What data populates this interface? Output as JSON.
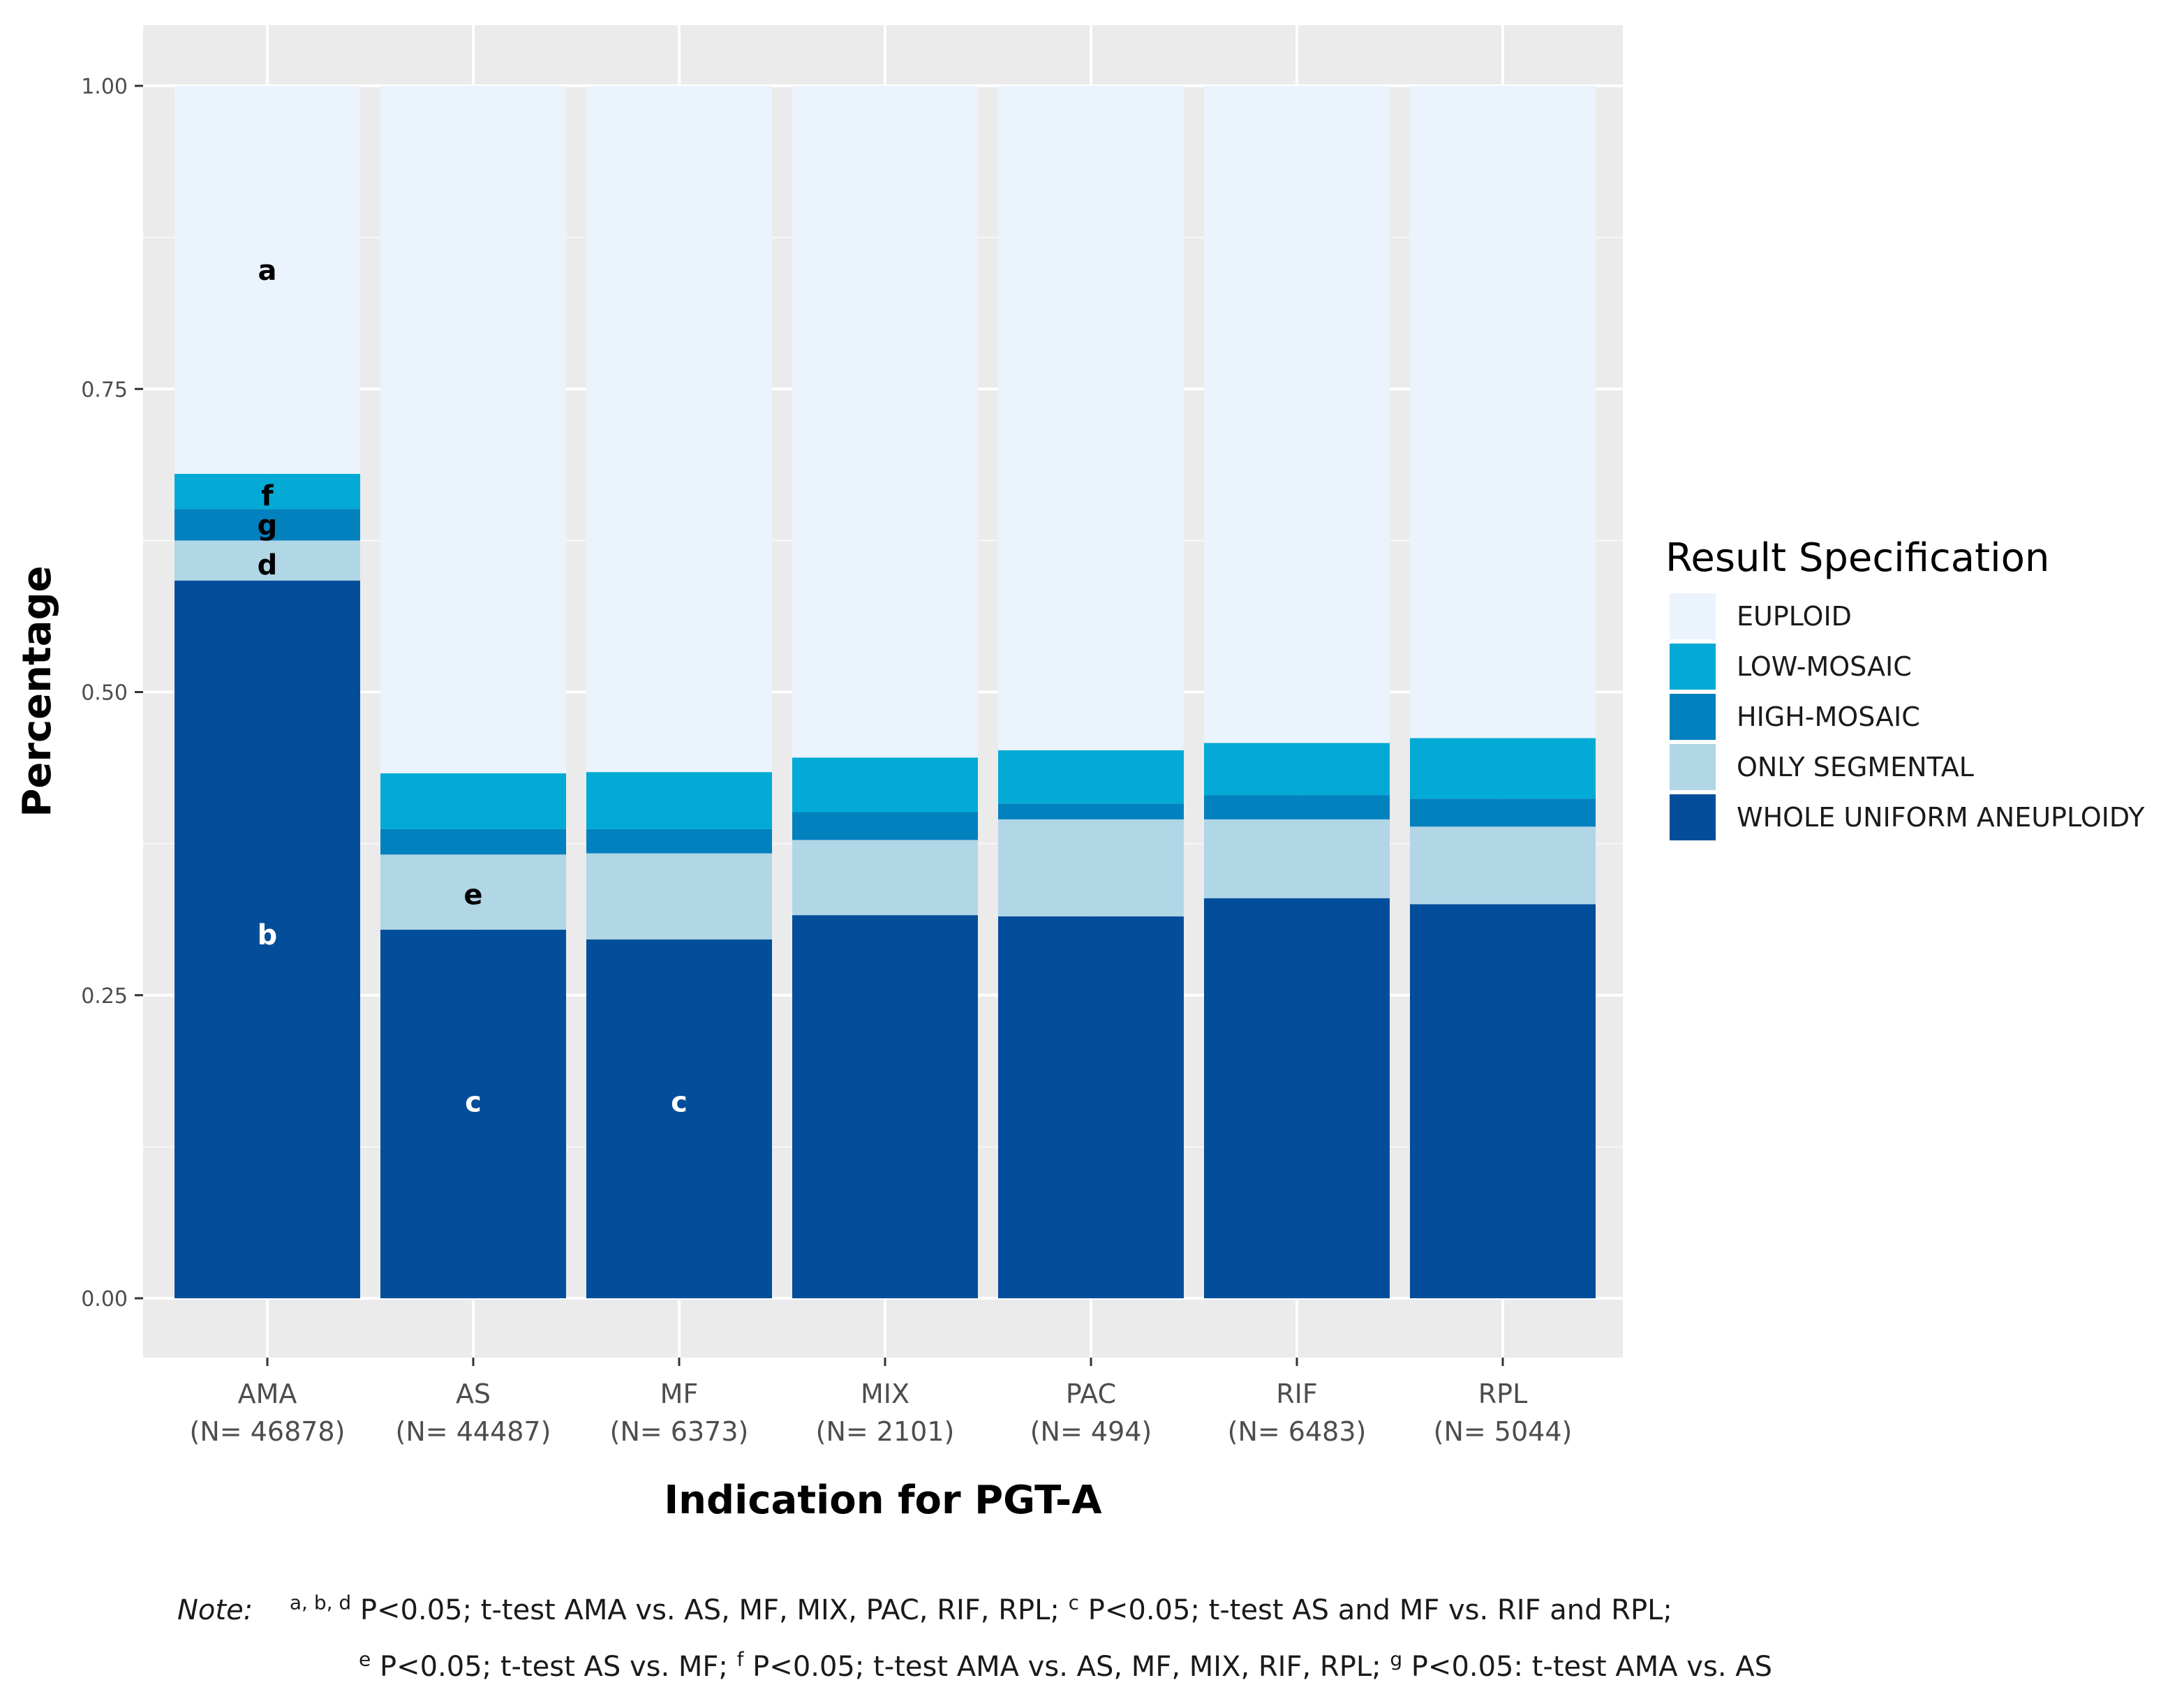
{
  "chart_data": {
    "type": "stacked-bar",
    "title": "",
    "xlabel": "Indication for PGT-A",
    "ylabel": "Percentage",
    "ylim": [
      0,
      1
    ],
    "yticks": [
      "0.00",
      "0.25",
      "0.50",
      "0.75",
      "1.00"
    ],
    "categories": [
      "AMA",
      "AS",
      "MF",
      "MIX",
      "PAC",
      "RIF",
      "RPL"
    ],
    "category_n": [
      "(N= 46878)",
      "(N= 44487)",
      "(N= 6373)",
      "(N= 2101)",
      "(N= 494)",
      "(N= 6483)",
      "(N= 5044)"
    ],
    "legend_title": "Result Specification",
    "legend_position": "right",
    "series": [
      {
        "name": "WHOLE UNIFORM ANEUPLOIDY",
        "color": "#034e9b",
        "values": [
          0.592,
          0.304,
          0.296,
          0.316,
          0.315,
          0.33,
          0.325
        ]
      },
      {
        "name": "ONLY SEGMENTAL",
        "color": "#b1d6e6",
        "values": [
          0.033,
          0.062,
          0.071,
          0.062,
          0.08,
          0.065,
          0.064
        ]
      },
      {
        "name": "HIGH-MOSAIC",
        "color": "#0281bf",
        "values": [
          0.026,
          0.021,
          0.02,
          0.023,
          0.013,
          0.02,
          0.023
        ]
      },
      {
        "name": "LOW-MOSAIC",
        "color": "#02aad5",
        "values": [
          0.029,
          0.046,
          0.047,
          0.045,
          0.044,
          0.043,
          0.05
        ]
      },
      {
        "name": "EUPLOID",
        "color": "#ebf3fd",
        "values": [
          0.32,
          0.567,
          0.566,
          0.554,
          0.548,
          0.542,
          0.538
        ]
      }
    ],
    "legend_order": [
      "EUPLOID",
      "LOW-MOSAIC",
      "HIGH-MOSAIC",
      "ONLY SEGMENTAL",
      "WHOLE UNIFORM ANEUPLOIDY"
    ],
    "annotations": [
      {
        "text": "a",
        "category": "AMA",
        "y": 0.848,
        "color": "#000000"
      },
      {
        "text": "f",
        "category": "AMA",
        "y": 0.662,
        "color": "#000000"
      },
      {
        "text": "g",
        "category": "AMA",
        "y": 0.638,
        "color": "#000000"
      },
      {
        "text": "d",
        "category": "AMA",
        "y": 0.605,
        "color": "#000000"
      },
      {
        "text": "b",
        "category": "AMA",
        "y": 0.3,
        "color": "#ffffff"
      },
      {
        "text": "e",
        "category": "AS",
        "y": 0.333,
        "color": "#000000"
      },
      {
        "text": "c",
        "category": "AS",
        "y": 0.162,
        "color": "#ffffff"
      },
      {
        "text": "c",
        "category": "MF",
        "y": 0.162,
        "color": "#ffffff"
      }
    ]
  },
  "note": {
    "label": "Note:",
    "line1_parts": [
      {
        "sup": "a, b, d"
      },
      {
        "text": " P<0.05; t-test AMA vs. AS, MF, MIX, PAC, RIF, RPL; "
      },
      {
        "sup": "c"
      },
      {
        "text": " P<0.05; t-test AS and MF vs. RIF and RPL;"
      }
    ],
    "line2_parts": [
      {
        "sup": "e"
      },
      {
        "text": " P<0.05; t-test AS vs. MF; "
      },
      {
        "sup": "f"
      },
      {
        "text": " P<0.05; t-test AMA vs. AS, MF, MIX, RIF, RPL; "
      },
      {
        "sup": "g"
      },
      {
        "text": " P<0.05: t-test AMA vs. AS"
      }
    ]
  }
}
